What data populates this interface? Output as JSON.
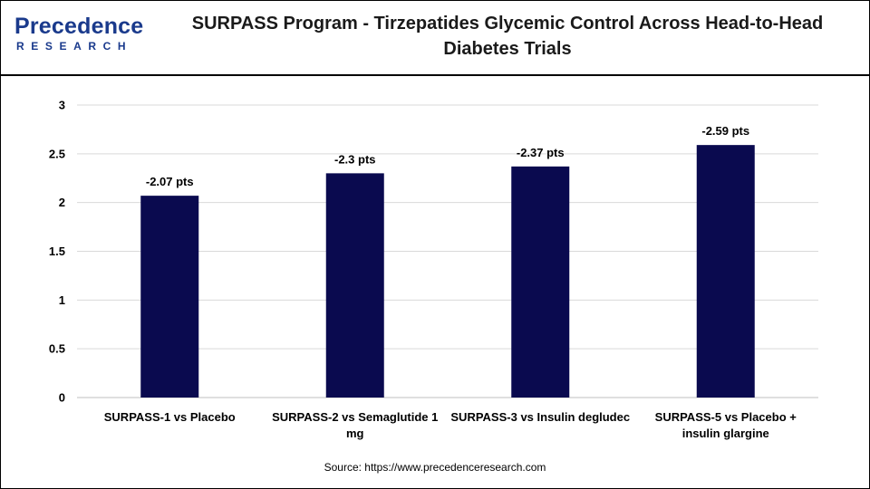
{
  "header": {
    "logo_word": "Precedence",
    "logo_sub": "RESEARCH",
    "title_line1": "SURPASS Program - Tirzepatides Glycemic Control Across Head-to-Head",
    "title_line2": "Diabetes Trials"
  },
  "chart_data": {
    "type": "bar",
    "title": "SURPASS Program - Tirzepatides Glycemic Control Across Head-to-Head Diabetes Trials",
    "xlabel": "",
    "ylabel": "",
    "categories": [
      "SURPASS-1 vs Placebo",
      "SURPASS-2 vs Semaglutide 1 mg",
      "SURPASS-3 vs Insulin degludec",
      "SURPASS-5 vs Placebo + insulin glargine"
    ],
    "values": [
      2.07,
      2.3,
      2.37,
      2.59
    ],
    "data_labels": [
      "-2.07 pts",
      "-2.3 pts",
      "-2.37 pts",
      "-2.59 pts"
    ],
    "ylim": [
      0,
      3
    ],
    "yticks": [
      "0",
      "0.5",
      "1",
      "1.5",
      "2",
      "2.5",
      "3"
    ],
    "grid": true,
    "legend": "none",
    "bar_color": "#0a0a4f"
  },
  "footer": {
    "source": "Source: https://www.precedenceresearch.com"
  }
}
